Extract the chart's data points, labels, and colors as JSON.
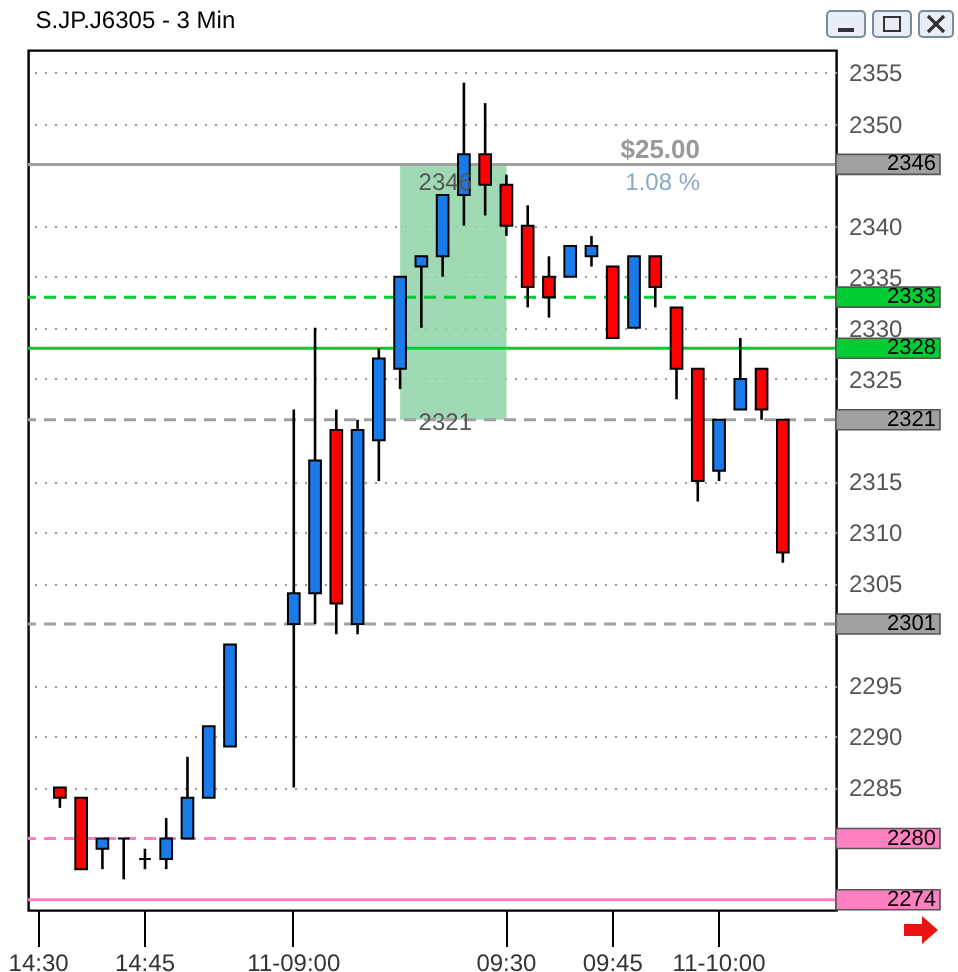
{
  "chart_data": {
    "type": "candlestick",
    "title": "S.JP.J6305 - 3 Min",
    "categories": [
      "14:30",
      null,
      null,
      null,
      null,
      "14:45",
      null,
      null,
      null,
      null,
      null,
      null,
      "11-09:00",
      null,
      null,
      null,
      null,
      null,
      null,
      null,
      null,
      null,
      "09:30",
      null,
      null,
      null,
      null,
      "09:45",
      null,
      null,
      null,
      null,
      "11-10:00",
      null,
      null,
      null,
      null,
      null
    ],
    "ohlc": [
      null,
      [
        2285,
        2285,
        2283,
        2284
      ],
      [
        2284,
        2284,
        2277,
        2277
      ],
      [
        2279,
        2280,
        2277,
        2280
      ],
      [
        2280,
        2280,
        2276,
        2280
      ],
      [
        2278,
        2279,
        2277,
        2278
      ],
      [
        2278,
        2282,
        2277,
        2280
      ],
      [
        2280,
        2288,
        2280,
        2284
      ],
      [
        2284,
        2291,
        2284,
        2291
      ],
      [
        2289,
        2299,
        2289,
        2299
      ],
      null,
      null,
      [
        2301,
        2322,
        2285,
        2304
      ],
      [
        2304,
        2330,
        2301,
        2317
      ],
      [
        2320,
        2322,
        2300,
        2303
      ],
      [
        2301,
        2321,
        2300,
        2320
      ],
      [
        2319,
        2328,
        2315,
        2327
      ],
      [
        2326,
        2335,
        2324,
        2335
      ],
      [
        2336,
        2337,
        2330,
        2337
      ],
      [
        2337,
        2343,
        2335,
        2343
      ],
      [
        2343,
        2354,
        2340,
        2347
      ],
      [
        2347,
        2352,
        2341,
        2344
      ],
      [
        2344,
        2345,
        2339,
        2340
      ],
      [
        2340,
        2342,
        2332,
        2334
      ],
      [
        2335,
        2337,
        2331,
        2333
      ],
      [
        2335,
        2338,
        2335,
        2338
      ],
      [
        2337,
        2339,
        2336,
        2338
      ],
      [
        2336,
        2336,
        2329,
        2329
      ],
      [
        2330,
        2337,
        2330,
        2337
      ],
      [
        2337,
        2337,
        2332,
        2334
      ],
      [
        2332,
        2332,
        2323,
        2326
      ],
      [
        2326,
        2326,
        2313,
        2315
      ],
      [
        2316,
        2321,
        2315,
        2321
      ],
      [
        2322,
        2329,
        2322,
        2325
      ],
      [
        2326,
        2326,
        2321,
        2322
      ],
      [
        2321,
        2321,
        2307,
        2308
      ],
      null,
      null
    ],
    "colors": [
      null,
      "#ff0000",
      "#ff0000",
      "#1a7ae8",
      "#000000",
      "#000000",
      "#1a7ae8",
      "#1a7ae8",
      "#1a7ae8",
      "#1a7ae8",
      null,
      null,
      "#1a7ae8",
      "#1a7ae8",
      "#ff0000",
      "#1a7ae8",
      "#1a7ae8",
      "#1a7ae8",
      "#1a7ae8",
      "#1a7ae8",
      "#1a7ae8",
      "#ff0000",
      "#ff0000",
      "#ff0000",
      "#ff0000",
      "#1a7ae8",
      "#1a7ae8",
      "#ff0000",
      "#1a7ae8",
      "#ff0000",
      "#ff0000",
      "#ff0000",
      "#1a7ae8",
      "#1a7ae8",
      "#ff0000",
      "#ff0000",
      null,
      null
    ],
    "ylim": [
      2273,
      2357.2
    ],
    "yticks": [
      2355,
      2350,
      2340,
      2335,
      2330,
      2325,
      2315,
      2310,
      2305,
      2295,
      2290,
      2285
    ],
    "grid": "y",
    "ref_lines": [
      {
        "axis": "y",
        "value": 2346,
        "label": "2346",
        "color": "#a0a0a0",
        "line_style": "solid"
      },
      {
        "axis": "y",
        "value": 2333,
        "label": "2333",
        "color": "#00cc33",
        "line_style": "dashed"
      },
      {
        "axis": "y",
        "value": 2328,
        "label": "2328",
        "color": "#00cc33",
        "line_style": "solid"
      },
      {
        "axis": "y",
        "value": 2321,
        "label": "2321",
        "color": "#a0a0a0",
        "line_style": "dashed"
      },
      {
        "axis": "y",
        "value": 2301,
        "label": "2301",
        "color": "#a0a0a0",
        "line_style": "dashed"
      },
      {
        "axis": "y",
        "value": 2280,
        "label": "2280",
        "color": "#ff80c0",
        "line_style": "dashed"
      },
      {
        "axis": "y",
        "value": 2274,
        "label": "2274",
        "color": "#ff80c0",
        "line_style": "solid"
      }
    ],
    "bands": [
      {
        "axis": "y",
        "from": 2321,
        "to": 2346,
        "color": "#8fd4a8"
      }
    ],
    "annotations": [
      "$25.00",
      "1.08 %",
      "2346",
      "2321"
    ]
  }
}
